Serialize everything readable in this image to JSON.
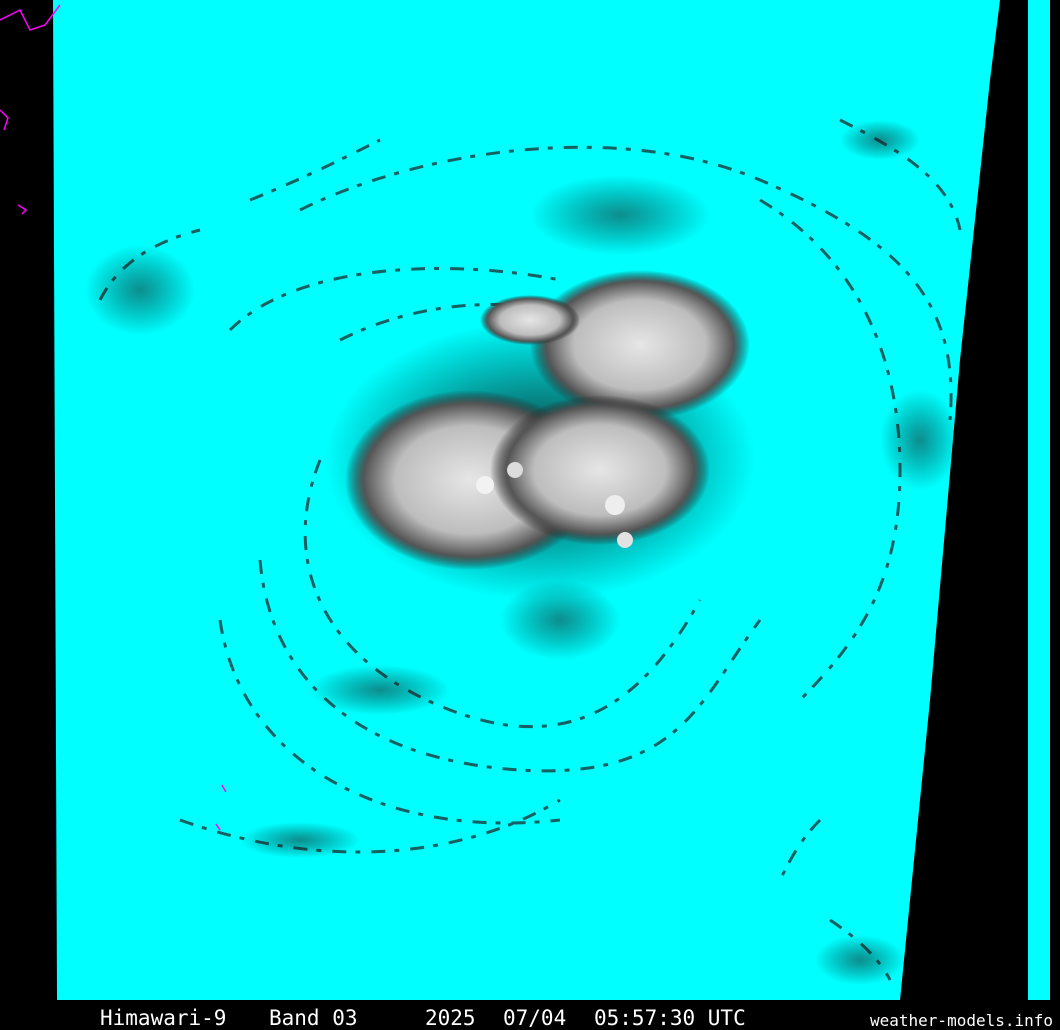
{
  "caption": {
    "satellite": "Himawari-9",
    "band": "Band 03",
    "year": "2025",
    "date": "07/04",
    "time": "05:57:30 UTC"
  },
  "watermark": "weather-models.info"
}
